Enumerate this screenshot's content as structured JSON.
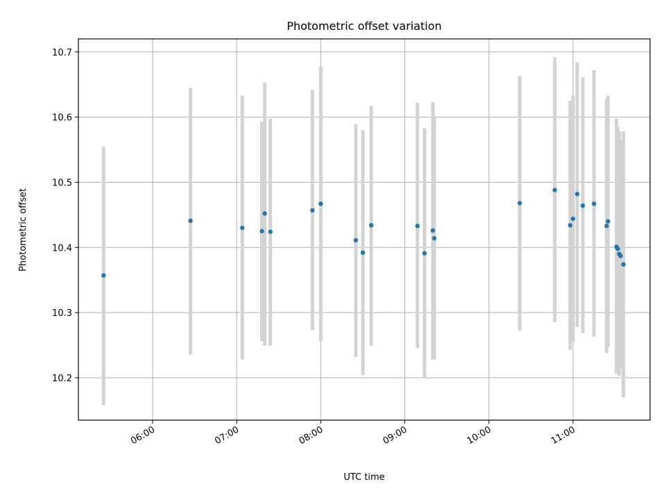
{
  "chart_data": {
    "type": "scatter",
    "title": "Photometric offset variation",
    "xlabel": "UTC time",
    "ylabel": "Photometric offset",
    "grid": true,
    "xlim": [
      "05:07",
      "11:55"
    ],
    "ylim": [
      10.135,
      10.72
    ],
    "x_ticks": [
      "06:00",
      "07:00",
      "08:00",
      "09:00",
      "10:00",
      "11:00"
    ],
    "y_ticks": [
      10.2,
      10.3,
      10.4,
      10.5,
      10.6,
      10.7
    ],
    "y_tick_labels": [
      "10.2",
      "10.3",
      "10.4",
      "10.5",
      "10.6",
      "10.7"
    ],
    "marker_color": "#1f77b4",
    "errorbar_color": "#d3d3d3",
    "points": [
      {
        "x": "05:25",
        "y": 10.357,
        "ylow": 10.158,
        "yhigh": 10.555
      },
      {
        "x": "06:27",
        "y": 10.441,
        "ylow": 10.236,
        "yhigh": 10.645
      },
      {
        "x": "07:04",
        "y": 10.43,
        "ylow": 10.228,
        "yhigh": 10.633
      },
      {
        "x": "07:18",
        "y": 10.425,
        "ylow": 10.256,
        "yhigh": 10.593
      },
      {
        "x": "07:20",
        "y": 10.452,
        "ylow": 10.249,
        "yhigh": 10.653
      },
      {
        "x": "07:24",
        "y": 10.424,
        "ylow": 10.249,
        "yhigh": 10.598
      },
      {
        "x": "07:54",
        "y": 10.457,
        "ylow": 10.273,
        "yhigh": 10.642
      },
      {
        "x": "08:00",
        "y": 10.467,
        "ylow": 10.256,
        "yhigh": 10.678
      },
      {
        "x": "08:25",
        "y": 10.411,
        "ylow": 10.232,
        "yhigh": 10.589
      },
      {
        "x": "08:30",
        "y": 10.392,
        "ylow": 10.204,
        "yhigh": 10.58
      },
      {
        "x": "08:36",
        "y": 10.434,
        "ylow": 10.249,
        "yhigh": 10.617
      },
      {
        "x": "09:09",
        "y": 10.433,
        "ylow": 10.246,
        "yhigh": 10.622
      },
      {
        "x": "09:14",
        "y": 10.391,
        "ylow": 10.2,
        "yhigh": 10.583
      },
      {
        "x": "09:20",
        "y": 10.426,
        "ylow": 10.228,
        "yhigh": 10.623
      },
      {
        "x": "09:21",
        "y": 10.414,
        "ylow": 10.228,
        "yhigh": 10.6
      },
      {
        "x": "10:22",
        "y": 10.468,
        "ylow": 10.272,
        "yhigh": 10.663
      },
      {
        "x": "10:47",
        "y": 10.488,
        "ylow": 10.285,
        "yhigh": 10.692
      },
      {
        "x": "10:58",
        "y": 10.434,
        "ylow": 10.243,
        "yhigh": 10.625
      },
      {
        "x": "11:00",
        "y": 10.444,
        "ylow": 10.255,
        "yhigh": 10.633
      },
      {
        "x": "11:03",
        "y": 10.482,
        "ylow": 10.278,
        "yhigh": 10.684
      },
      {
        "x": "11:07",
        "y": 10.464,
        "ylow": 10.268,
        "yhigh": 10.661
      },
      {
        "x": "11:15",
        "y": 10.467,
        "ylow": 10.263,
        "yhigh": 10.672
      },
      {
        "x": "11:24",
        "y": 10.433,
        "ylow": 10.238,
        "yhigh": 10.628
      },
      {
        "x": "11:25",
        "y": 10.44,
        "ylow": 10.247,
        "yhigh": 10.633
      },
      {
        "x": "11:31",
        "y": 10.401,
        "ylow": 10.206,
        "yhigh": 10.598
      },
      {
        "x": "11:32",
        "y": 10.398,
        "ylow": 10.21,
        "yhigh": 10.585
      },
      {
        "x": "11:33",
        "y": 10.39,
        "ylow": 10.203,
        "yhigh": 10.578
      },
      {
        "x": "11:34",
        "y": 10.387,
        "ylow": 10.215,
        "yhigh": 10.565
      },
      {
        "x": "11:36",
        "y": 10.374,
        "ylow": 10.17,
        "yhigh": 10.578
      }
    ]
  }
}
